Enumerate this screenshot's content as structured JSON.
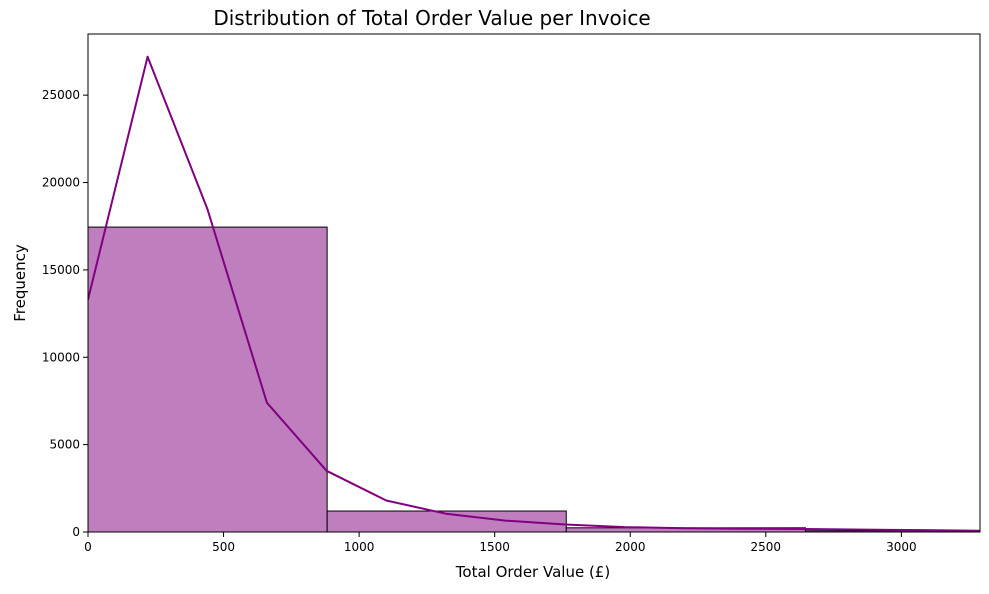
{
  "chart_data": {
    "type": "bar",
    "title": "Distribution of Total Order Value per Invoice",
    "xlabel": "Total Order Value (£)",
    "ylabel": "Frequency",
    "xlim": [
      0,
      3290
    ],
    "ylim": [
      0,
      28500
    ],
    "x_ticks": [
      0,
      500,
      1000,
      1500,
      2000,
      2500,
      3000
    ],
    "y_ticks": [
      0,
      5000,
      10000,
      15000,
      20000,
      25000
    ],
    "grid": false,
    "legend": "none",
    "bins": [
      {
        "x0": 0,
        "x1": 882,
        "count": 17450
      },
      {
        "x0": 882,
        "x1": 1764,
        "count": 1200
      },
      {
        "x0": 1764,
        "x1": 2646,
        "count": 240
      },
      {
        "x0": 2646,
        "x1": 3528,
        "count": 70
      }
    ],
    "kde": {
      "x": [
        0,
        220,
        440,
        660,
        880,
        1100,
        1320,
        1540,
        1760,
        1980,
        2200,
        2420,
        2640,
        2860,
        3080,
        3290
      ],
      "y": [
        13300,
        27200,
        18500,
        7400,
        3500,
        1800,
        1050,
        650,
        430,
        280,
        210,
        190,
        170,
        140,
        110,
        70
      ]
    },
    "colors": {
      "bar_fill": "#bf7fbf",
      "bar_edge": "#000000",
      "kde_line": "#800080"
    }
  }
}
